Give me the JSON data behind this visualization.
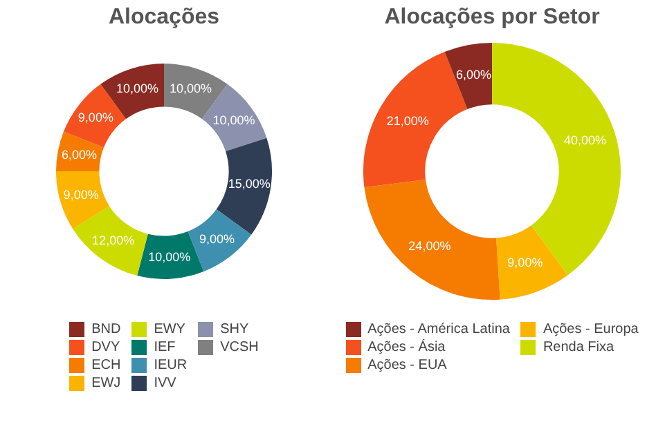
{
  "chart_data": [
    {
      "type": "donut",
      "title": "Alocações",
      "legend": "bottom",
      "categories": [
        "BND",
        "DVY",
        "ECH",
        "EWJ",
        "EWY",
        "IEF",
        "IEUR",
        "IVV",
        "SHY",
        "VCSH"
      ],
      "values": [
        10,
        9,
        6,
        9,
        12,
        10,
        9,
        15,
        10,
        10
      ],
      "value_labels": [
        "10,00%",
        "9,00%",
        "6,00%",
        "9,00%",
        "12,00%",
        "10,00%",
        "9,00%",
        "15,00%",
        "10,00%",
        "10,00%"
      ],
      "colors": [
        "#8b2a22",
        "#f4511e",
        "#f57c00",
        "#fbb400",
        "#cddc00",
        "#00796b",
        "#3f8fb0",
        "#2f3e55",
        "#8c92ae",
        "#808080"
      ]
    },
    {
      "type": "donut",
      "title": "Alocações por Setor",
      "legend": "bottom",
      "categories": [
        "Ações - América Latina",
        "Ações - Ásia",
        "Ações - EUA",
        "Ações - Europa",
        "Renda Fixa"
      ],
      "values": [
        6,
        21,
        24,
        9,
        40
      ],
      "value_labels": [
        "6,00%",
        "21,00%",
        "24,00%",
        "9,00%",
        "40,00%"
      ],
      "colors": [
        "#8b2a22",
        "#f4511e",
        "#f57c00",
        "#fbb400",
        "#cddc00"
      ]
    }
  ]
}
